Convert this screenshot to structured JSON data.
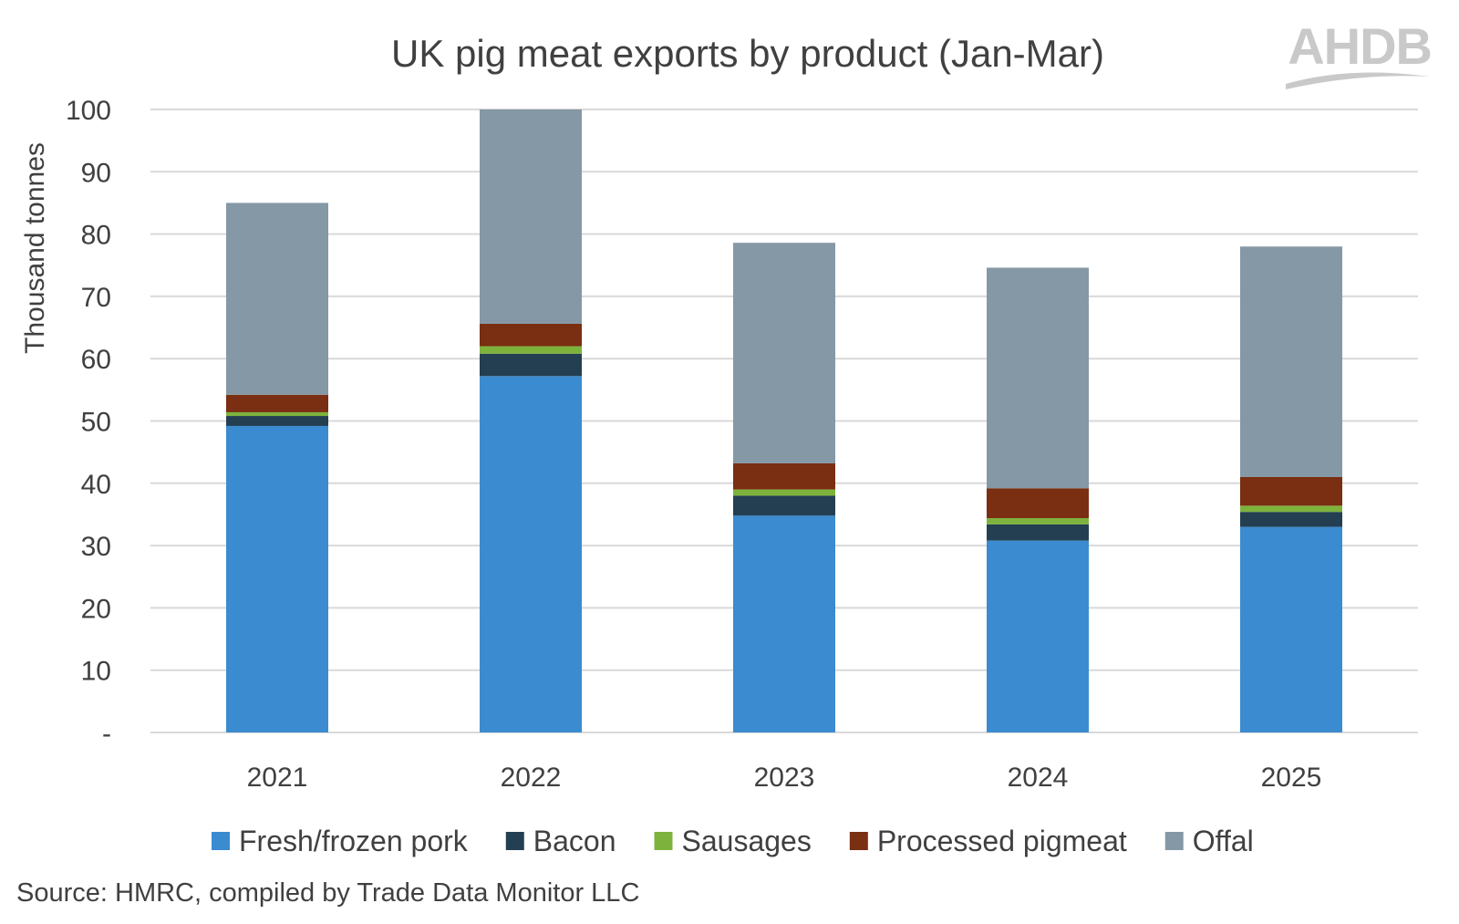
{
  "chart_data": {
    "type": "bar",
    "stacked": true,
    "title": "UK pig meat exports by product (Jan-Mar)",
    "ylabel": "Thousand tonnes",
    "xlabel": "",
    "ylim": [
      0,
      100
    ],
    "yticks": [
      0,
      10,
      20,
      30,
      40,
      50,
      60,
      70,
      80,
      90,
      100
    ],
    "ytick_labels": [
      "-",
      "10",
      "20",
      "30",
      "40",
      "50",
      "60",
      "70",
      "80",
      "90",
      "100"
    ],
    "grid": true,
    "legend_position": "bottom",
    "categories": [
      "2021",
      "2022",
      "2023",
      "2024",
      "2025"
    ],
    "series": [
      {
        "name": "Fresh/frozen pork",
        "color": "#3b8bd0",
        "values": [
          49.2,
          57.2,
          34.8,
          30.8,
          33.0
        ]
      },
      {
        "name": "Bacon",
        "color": "#243f52",
        "values": [
          1.6,
          3.6,
          3.2,
          2.6,
          2.4
        ]
      },
      {
        "name": "Sausages",
        "color": "#7db33c",
        "values": [
          0.6,
          1.2,
          1.0,
          1.0,
          1.0
        ]
      },
      {
        "name": "Processed pigmeat",
        "color": "#7a2e12",
        "values": [
          2.8,
          3.6,
          4.2,
          4.8,
          4.6
        ]
      },
      {
        "name": "Offal",
        "color": "#8598a5",
        "values": [
          30.8,
          34.4,
          35.4,
          35.4,
          37.0
        ]
      }
    ],
    "source": "Source: HMRC, compiled by Trade Data Monitor LLC"
  },
  "logo": {
    "text": "AHDB",
    "color": "#c9c9c9"
  }
}
